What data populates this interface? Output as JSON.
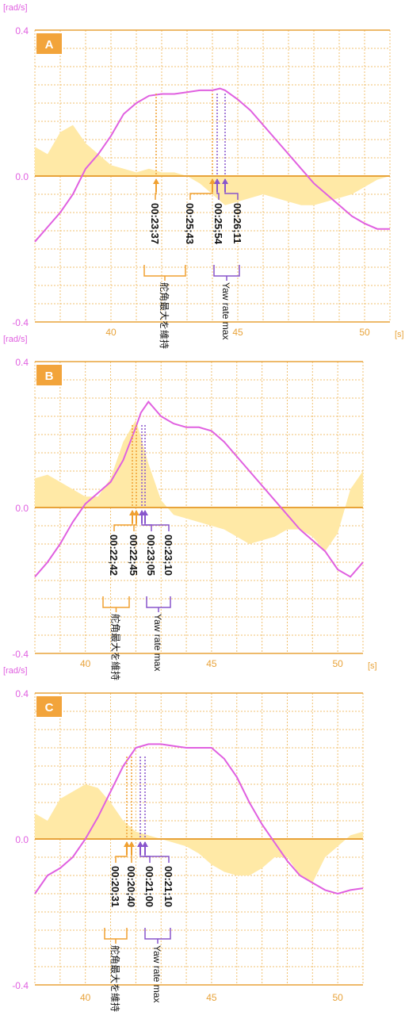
{
  "charts": [
    {
      "label": "A",
      "unit_y": "[rad/s]",
      "unit_x": "[s]",
      "y_ticks": [
        "0.4",
        "0.0",
        "-0.4"
      ],
      "x_ticks": [
        "40",
        "45",
        "50"
      ],
      "lead_lines": [
        {
          "time": "00:23;37",
          "color": "orange"
        },
        {
          "time": "00:25;43",
          "color": "orange"
        },
        {
          "time": "00:25;54",
          "color": "purple"
        },
        {
          "time": "00:26;11",
          "color": "purple"
        }
      ],
      "bracket_orange": "舵角最大を維持",
      "bracket_purple": "Yaw rate max"
    },
    {
      "label": "B",
      "unit_y": "[rad/s]",
      "unit_x": "[s]",
      "y_ticks": [
        "0.4",
        "0.0",
        "-0.4"
      ],
      "x_ticks": [
        "40",
        "45",
        "50"
      ],
      "lead_lines": [
        {
          "time": "00:22;42",
          "color": "orange"
        },
        {
          "time": "00:22;45",
          "color": "orange"
        },
        {
          "time": "00:23;05",
          "color": "purple"
        },
        {
          "time": "00:23;10",
          "color": "purple"
        }
      ],
      "bracket_orange": "舵角最大を維持",
      "bracket_purple": "Yaw rate max"
    },
    {
      "label": "C",
      "unit_y": "[rad/s]",
      "unit_x": "",
      "y_ticks": [
        "0.4",
        "0.0",
        "-0.4"
      ],
      "x_ticks": [
        "40",
        "45",
        "50"
      ],
      "lead_lines": [
        {
          "time": "00:20;31",
          "color": "orange"
        },
        {
          "time": "00:20;40",
          "color": "orange"
        },
        {
          "time": "00:21;00",
          "color": "purple"
        },
        {
          "time": "00:21;10",
          "color": "purple"
        }
      ],
      "bracket_orange": "舵角最大を維持",
      "bracket_purple": "Yaw rate max"
    }
  ],
  "chart_data": [
    {
      "type": "line",
      "title": "A",
      "xlabel": "[s]",
      "ylabel": "[rad/s]",
      "xlim": [
        37.0,
        51.0
      ],
      "ylim": [
        -0.4,
        0.4
      ],
      "grid": true,
      "series": [
        {
          "x": [
            37.0,
            37.5,
            38.0,
            38.5,
            39.0,
            39.5,
            40.0,
            40.5,
            41.0,
            41.5,
            42.0,
            42.5,
            43.0,
            43.5,
            44.0,
            44.3,
            44.5,
            45.0,
            45.5,
            46.0,
            46.5,
            47.0,
            47.5,
            48.0,
            48.5,
            49.0,
            49.5,
            50.0,
            50.5,
            51.0
          ],
          "values": [
            -0.18,
            -0.14,
            -0.1,
            -0.05,
            0.02,
            0.06,
            0.11,
            0.17,
            0.2,
            0.22,
            0.225,
            0.225,
            0.23,
            0.235,
            0.235,
            0.24,
            0.235,
            0.21,
            0.18,
            0.14,
            0.1,
            0.06,
            0.02,
            -0.02,
            -0.05,
            -0.08,
            -0.11,
            -0.13,
            -0.145,
            -0.145
          ]
        },
        {
          "x": [
            37.0,
            37.5,
            38.0,
            38.5,
            39.0,
            39.5,
            40.0,
            40.5,
            41.0,
            41.5,
            42.0,
            42.5,
            43.0,
            43.5,
            44.0,
            44.5,
            45.0,
            45.5,
            46.0,
            46.5,
            47.0,
            47.5,
            48.0,
            48.5,
            49.0,
            49.5,
            50.0,
            50.5,
            51.0
          ],
          "values": [
            0.08,
            0.06,
            0.12,
            0.14,
            0.09,
            0.06,
            0.03,
            0.02,
            0.01,
            0.02,
            0.01,
            0.01,
            0.0,
            -0.02,
            -0.05,
            -0.08,
            -0.07,
            -0.06,
            -0.05,
            -0.06,
            -0.07,
            -0.08,
            -0.08,
            -0.07,
            -0.06,
            -0.05,
            -0.03,
            -0.01,
            0.0
          ]
        }
      ]
    },
    {
      "type": "line",
      "title": "B",
      "xlabel": "[s]",
      "ylabel": "[rad/s]",
      "xlim": [
        38.0,
        51.0
      ],
      "ylim": [
        -0.4,
        0.4
      ],
      "grid": true,
      "series": [
        {
          "x": [
            38.0,
            38.5,
            39.0,
            39.5,
            40.0,
            40.5,
            41.0,
            41.5,
            42.0,
            42.2,
            42.5,
            43.0,
            43.5,
            44.0,
            44.5,
            45.0,
            45.5,
            46.0,
            46.5,
            47.0,
            47.5,
            48.0,
            48.5,
            49.0,
            49.5,
            50.0,
            50.5,
            51.0
          ],
          "values": [
            -0.19,
            -0.15,
            -0.1,
            -0.04,
            0.01,
            0.04,
            0.07,
            0.13,
            0.22,
            0.26,
            0.29,
            0.25,
            0.23,
            0.22,
            0.22,
            0.21,
            0.18,
            0.14,
            0.1,
            0.06,
            0.02,
            -0.02,
            -0.06,
            -0.09,
            -0.12,
            -0.17,
            -0.19,
            -0.15
          ]
        },
        {
          "x": [
            38.0,
            38.5,
            39.0,
            39.5,
            40.0,
            40.5,
            41.0,
            41.5,
            42.0,
            42.5,
            43.0,
            43.5,
            44.0,
            44.5,
            45.0,
            45.5,
            46.0,
            46.5,
            47.0,
            47.5,
            48.0,
            48.5,
            49.0,
            49.5,
            50.0,
            50.5,
            51.0
          ],
          "values": [
            0.08,
            0.09,
            0.07,
            0.05,
            0.03,
            0.03,
            0.08,
            0.18,
            0.24,
            0.12,
            0.02,
            -0.02,
            -0.03,
            -0.04,
            -0.05,
            -0.06,
            -0.08,
            -0.1,
            -0.09,
            -0.08,
            -0.06,
            -0.06,
            -0.08,
            -0.12,
            -0.07,
            0.05,
            0.1
          ]
        }
      ]
    },
    {
      "type": "line",
      "title": "C",
      "xlabel": "",
      "ylabel": "[rad/s]",
      "xlim": [
        38.0,
        51.0
      ],
      "ylim": [
        -0.4,
        0.4
      ],
      "grid": true,
      "series": [
        {
          "x": [
            38.0,
            38.5,
            39.0,
            39.5,
            40.0,
            40.5,
            41.0,
            41.5,
            42.0,
            42.5,
            43.0,
            43.5,
            44.0,
            44.5,
            45.0,
            45.5,
            46.0,
            46.5,
            47.0,
            47.5,
            48.0,
            48.5,
            49.0,
            49.5,
            50.0,
            50.5,
            51.0
          ],
          "values": [
            -0.15,
            -0.1,
            -0.08,
            -0.05,
            0.0,
            0.06,
            0.13,
            0.2,
            0.25,
            0.26,
            0.26,
            0.255,
            0.25,
            0.25,
            0.25,
            0.22,
            0.17,
            0.1,
            0.04,
            -0.01,
            -0.06,
            -0.1,
            -0.12,
            -0.14,
            -0.15,
            -0.14,
            -0.135
          ]
        },
        {
          "x": [
            38.0,
            38.5,
            39.0,
            39.5,
            40.0,
            40.5,
            41.0,
            41.5,
            42.0,
            42.5,
            43.0,
            43.5,
            44.0,
            44.5,
            45.0,
            45.5,
            46.0,
            46.5,
            47.0,
            47.5,
            48.0,
            48.5,
            49.0,
            49.5,
            50.0,
            50.5,
            51.0
          ],
          "values": [
            0.07,
            0.05,
            0.11,
            0.13,
            0.15,
            0.14,
            0.1,
            0.05,
            0.02,
            0.01,
            0.0,
            -0.01,
            -0.02,
            -0.04,
            -0.07,
            -0.09,
            -0.1,
            -0.1,
            -0.08,
            -0.05,
            -0.05,
            -0.1,
            -0.12,
            -0.05,
            -0.02,
            0.01,
            0.02
          ]
        }
      ]
    }
  ],
  "colors": {
    "grid": "#f0c070",
    "axis": "#e8a33a",
    "pink": "#e060e0",
    "orange": "#f0a030",
    "purple": "#8855cc",
    "area": "#ffe9a6",
    "badge": "#f2a43b"
  }
}
